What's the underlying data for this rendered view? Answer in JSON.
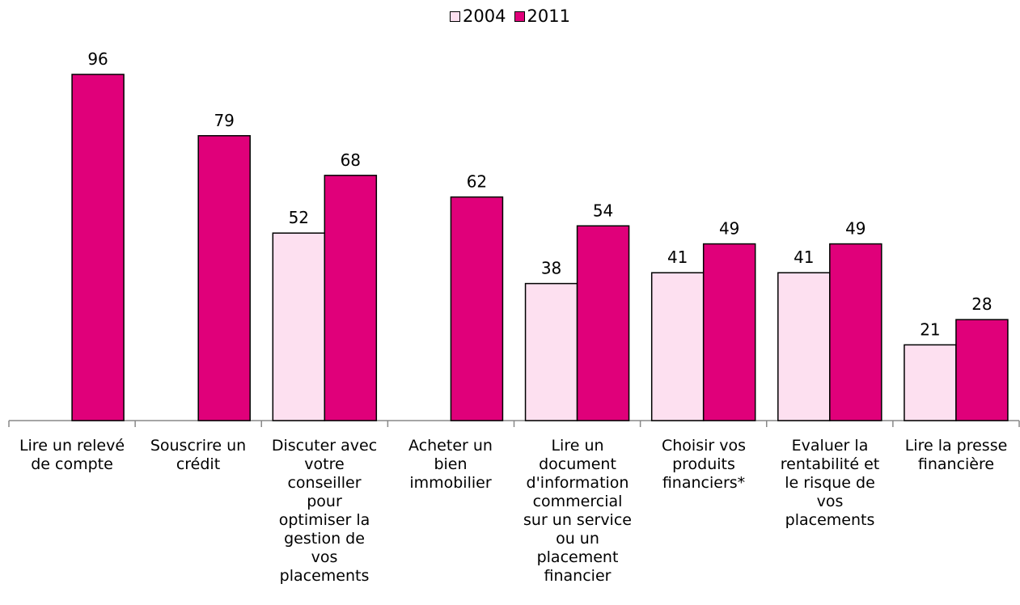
{
  "chart_data": {
    "type": "bar",
    "categories": [
      "Lire un relevé de compte",
      "Souscrire un crédit",
      "Discuter avec votre conseiller pour optimiser la gestion de vos placements",
      "Acheter un bien immobilier",
      "Lire un document d'information commercial sur un service ou un placement financier",
      "Choisir vos produits financiers*",
      "Evaluer la rentabilité et le risque de vos placements",
      "Lire la presse financière"
    ],
    "series": [
      {
        "name": "2004",
        "color": "#fde0f0",
        "values": [
          null,
          null,
          52,
          null,
          38,
          41,
          41,
          21
        ]
      },
      {
        "name": "2011",
        "color": "#e0007a",
        "values": [
          96,
          79,
          68,
          62,
          54,
          49,
          49,
          28
        ]
      }
    ],
    "legend": {
      "position": "top-center"
    },
    "ylim": [
      0,
      100
    ],
    "grid": false,
    "title": "",
    "xlabel": "",
    "ylabel": ""
  }
}
